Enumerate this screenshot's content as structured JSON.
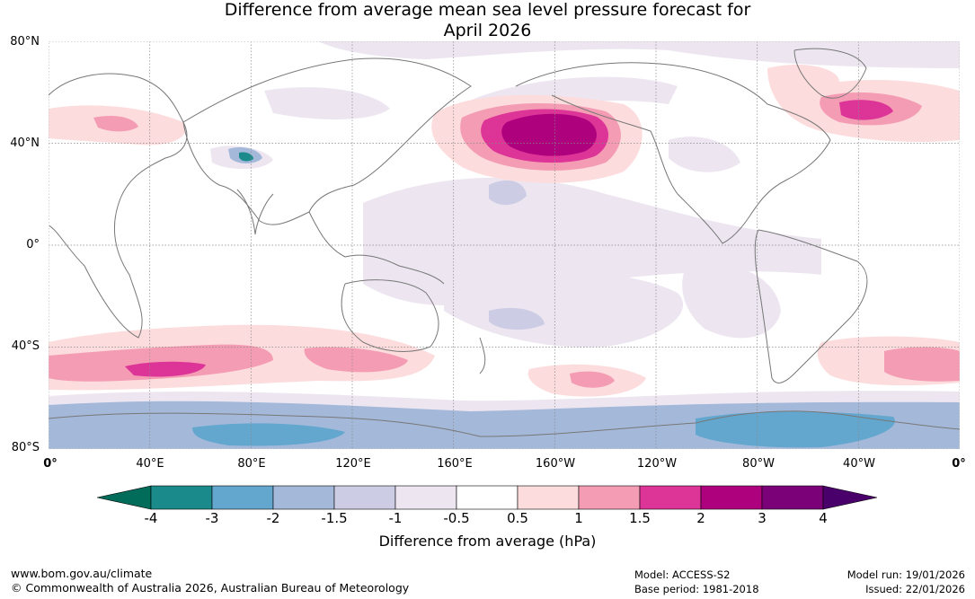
{
  "title_line1": "Difference from average mean sea level pressure forecast for",
  "title_line2": "April 2026",
  "lat_labels": [
    "80°N",
    "40°N",
    "0°",
    "40°S",
    "80°S"
  ],
  "lon_labels": [
    "0°",
    "40°E",
    "80°E",
    "120°E",
    "160°E",
    "160°W",
    "120°W",
    "80°W",
    "40°W",
    "0°"
  ],
  "colorbar": {
    "ticks": [
      "-4",
      "-3",
      "-2",
      "-1.5",
      "-1",
      "-0.5",
      "0.5",
      "1",
      "1.5",
      "2",
      "3",
      "4"
    ],
    "colors": [
      "#1a8a8a",
      "#63a7cf",
      "#a4b9da",
      "#cccde4",
      "#ede6f1",
      "#ffffff",
      "#fcdcdc",
      "#f59cb5",
      "#dd3497",
      "#ae017e",
      "#7a0177"
    ],
    "under_color": "#016c59",
    "over_color": "#49006a",
    "label": "Difference from average (hPa)"
  },
  "footer": {
    "url": "www.bom.gov.au/climate",
    "copyright": "© Commonwealth of Australia 2026, Australian Bureau of Meteorology",
    "model": "Model: ACCESS-S2",
    "base_period": "Base period: 1981-2018",
    "model_run": "Model run: 19/01/2026",
    "issued": "Issued: 22/01/2026"
  }
}
